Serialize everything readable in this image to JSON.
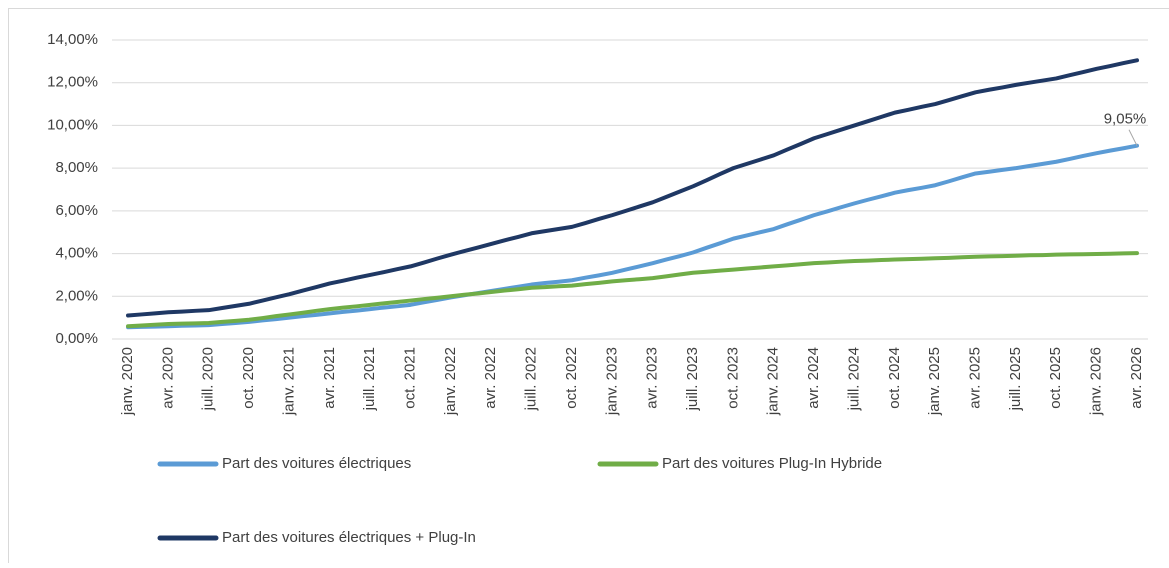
{
  "chart_data": {
    "type": "line",
    "categories": [
      "janv. 2020",
      null,
      null,
      "avr. 2020",
      null,
      null,
      "juill. 2020",
      null,
      null,
      "oct. 2020",
      null,
      null,
      "janv. 2021",
      null,
      null,
      "avr. 2021",
      null,
      null,
      "juill. 2021",
      null,
      null,
      "oct. 2021",
      null,
      null,
      "janv. 2022",
      null,
      null,
      "avr. 2022",
      null,
      null,
      "juill. 2022",
      null,
      null,
      "oct. 2022",
      null,
      null,
      "janv. 2023",
      null,
      null,
      "avr. 2023",
      null,
      null,
      "juill. 2023",
      null,
      null,
      "oct. 2023",
      null,
      null,
      "janv. 2024",
      null,
      null,
      "avr. 2024",
      null,
      null,
      "juill. 2024",
      null,
      null,
      "oct. 2024",
      null,
      null,
      "janv. 2025",
      null,
      null,
      "avr. 2025",
      null,
      null,
      "juill. 2025",
      null,
      null,
      "oct. 2025",
      null,
      null,
      "janv. 2026",
      null,
      null,
      "avr. 2026"
    ],
    "series": [
      {
        "name": "Part des voitures électriques",
        "color": "#5b9bd5",
        "values": [
          0.55,
          0.57,
          0.58,
          0.6,
          0.62,
          0.63,
          0.65,
          0.7,
          0.75,
          0.8,
          0.87,
          0.93,
          1.0,
          1.07,
          1.13,
          1.2,
          1.27,
          1.33,
          1.4,
          1.47,
          1.53,
          1.6,
          1.72,
          1.83,
          1.95,
          2.05,
          2.15,
          2.25,
          2.35,
          2.45,
          2.55,
          2.62,
          2.68,
          2.75,
          2.87,
          2.98,
          3.1,
          3.25,
          3.4,
          3.55,
          3.72,
          3.88,
          4.05,
          4.27,
          4.48,
          4.7,
          4.85,
          5.0,
          5.15,
          5.37,
          5.58,
          5.8,
          5.98,
          6.17,
          6.35,
          6.52,
          6.68,
          6.85,
          6.97,
          7.08,
          7.2,
          7.38,
          7.57,
          7.75,
          7.83,
          7.92,
          8.0,
          8.1,
          8.2,
          8.3,
          8.43,
          8.57,
          8.7,
          8.82,
          8.93,
          9.05
        ],
        "value_labels": [
          null,
          null,
          null,
          null,
          null,
          null,
          null,
          null,
          null,
          null,
          null,
          null,
          null,
          null,
          null,
          null,
          null,
          null,
          null,
          null,
          null,
          null,
          null,
          null,
          null,
          null,
          null,
          null,
          null,
          null,
          null,
          null,
          null,
          null,
          null,
          null,
          null,
          null,
          null,
          null,
          null,
          null,
          null,
          null,
          null,
          null,
          null,
          null,
          null,
          null,
          null,
          null,
          null,
          null,
          null,
          null,
          null,
          null,
          null,
          null,
          null,
          null,
          null,
          null,
          null,
          null,
          null,
          null,
          null,
          null,
          null,
          null,
          null,
          null,
          null,
          "9,05%"
        ]
      },
      {
        "name": "Part des voitures Plug-In Hybride",
        "color": "#70ad47",
        "values": [
          0.6,
          0.63,
          0.67,
          0.7,
          0.72,
          0.73,
          0.75,
          0.8,
          0.85,
          0.9,
          0.98,
          1.07,
          1.15,
          1.23,
          1.32,
          1.4,
          1.47,
          1.53,
          1.6,
          1.67,
          1.73,
          1.8,
          1.87,
          1.93,
          2.0,
          2.07,
          2.13,
          2.2,
          2.27,
          2.33,
          2.4,
          2.43,
          2.47,
          2.5,
          2.57,
          2.63,
          2.7,
          2.75,
          2.8,
          2.85,
          2.93,
          3.02,
          3.1,
          3.15,
          3.2,
          3.25,
          3.3,
          3.35,
          3.4,
          3.45,
          3.5,
          3.55,
          3.58,
          3.62,
          3.65,
          3.67,
          3.7,
          3.72,
          3.74,
          3.76,
          3.78,
          3.8,
          3.83,
          3.85,
          3.87,
          3.88,
          3.9,
          3.92,
          3.93,
          3.95,
          3.96,
          3.97,
          3.98,
          3.99,
          4.01,
          4.02
        ]
      },
      {
        "name": "Part des voitures électriques + Plug-In",
        "color": "#1f3864",
        "values": [
          1.1,
          1.15,
          1.2,
          1.25,
          1.28,
          1.32,
          1.35,
          1.45,
          1.55,
          1.65,
          1.8,
          1.95,
          2.1,
          2.27,
          2.43,
          2.6,
          2.73,
          2.87,
          3.0,
          3.13,
          3.27,
          3.4,
          3.58,
          3.77,
          3.95,
          4.12,
          4.28,
          4.45,
          4.62,
          4.78,
          4.95,
          5.05,
          5.15,
          5.25,
          5.43,
          5.62,
          5.8,
          6.0,
          6.2,
          6.4,
          6.65,
          6.9,
          7.15,
          7.43,
          7.72,
          8.0,
          8.2,
          8.4,
          8.6,
          8.87,
          9.13,
          9.4,
          9.6,
          9.8,
          10.0,
          10.2,
          10.4,
          10.6,
          10.73,
          10.87,
          11.0,
          11.18,
          11.37,
          11.55,
          11.67,
          11.78,
          11.9,
          12.0,
          12.1,
          12.2,
          12.35,
          12.5,
          12.65,
          12.78,
          12.92,
          13.05
        ]
      }
    ],
    "ylim": [
      0,
      14
    ],
    "yticks": [
      {
        "value": 0,
        "label": "0,00%"
      },
      {
        "value": 2,
        "label": "2,00%"
      },
      {
        "value": 4,
        "label": "4,00%"
      },
      {
        "value": 6,
        "label": "6,00%"
      },
      {
        "value": 8,
        "label": "8,00%"
      },
      {
        "value": 10,
        "label": "10,00%"
      },
      {
        "value": 12,
        "label": "12,00%"
      },
      {
        "value": 14,
        "label": "14,00%"
      }
    ],
    "grid": true,
    "legend": "bottom"
  }
}
